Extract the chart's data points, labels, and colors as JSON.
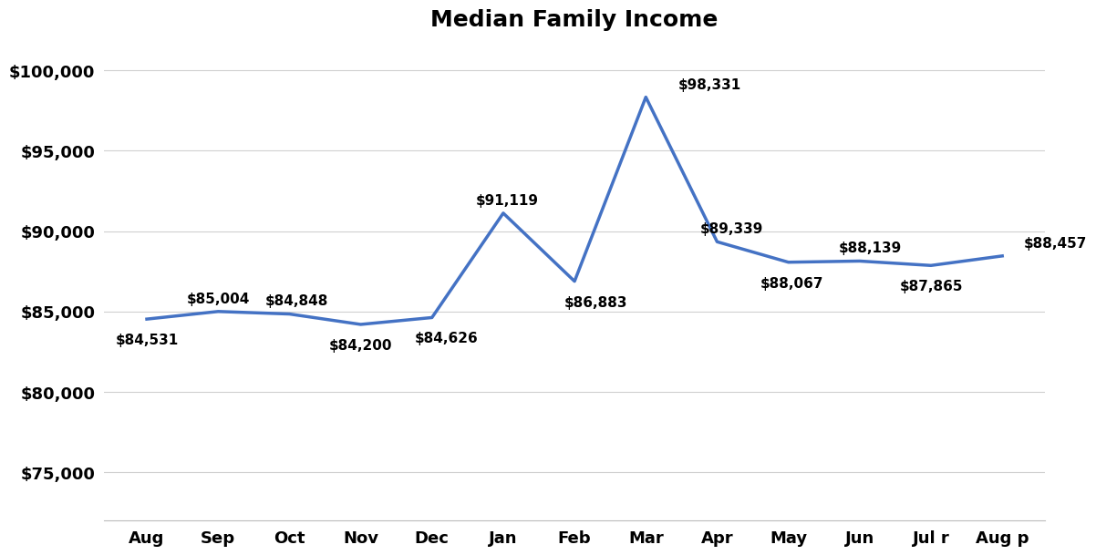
{
  "title": "Median Family Income",
  "categories": [
    "Aug",
    "Sep",
    "Oct",
    "Nov",
    "Dec",
    "Jan",
    "Feb",
    "Mar",
    "Apr",
    "May",
    "Jun",
    "Jul r",
    "Aug p"
  ],
  "values": [
    84531,
    85004,
    84848,
    84200,
    84626,
    91119,
    86883,
    98331,
    89339,
    88067,
    88139,
    87865,
    88457
  ],
  "labels": [
    "$84,531",
    "$85,004",
    "$84,848",
    "$84,200",
    "$84,626",
    "$91,119",
    "$86,883",
    "$98,331",
    "$89,339",
    "$88,067",
    "$88,139",
    "$87,865",
    "$88,457"
  ],
  "line_color": "#4472C4",
  "line_width": 2.5,
  "background_color": "#ffffff",
  "ylim": [
    72000,
    101500
  ],
  "yticks": [
    75000,
    80000,
    85000,
    90000,
    95000,
    100000
  ],
  "ytick_labels": [
    "$75,000",
    "$80,000",
    "$85,000",
    "$90,000",
    "$95,000",
    "$100,000"
  ],
  "title_fontsize": 18,
  "label_fontsize": 11,
  "tick_fontsize": 13,
  "grid_color": "#d0d0d0",
  "grid_alpha": 1.0,
  "label_offsets_x": [
    0.0,
    0.0,
    0.1,
    0.0,
    0.2,
    0.05,
    0.3,
    0.45,
    0.2,
    0.05,
    0.15,
    0.0,
    0.3
  ],
  "label_offsets_y": [
    -1300,
    800,
    800,
    -1300,
    -1300,
    800,
    -1300,
    800,
    800,
    -1300,
    800,
    -1300,
    800
  ],
  "label_ha": [
    "center",
    "center",
    "center",
    "center",
    "center",
    "center",
    "center",
    "left",
    "center",
    "center",
    "center",
    "center",
    "left"
  ]
}
